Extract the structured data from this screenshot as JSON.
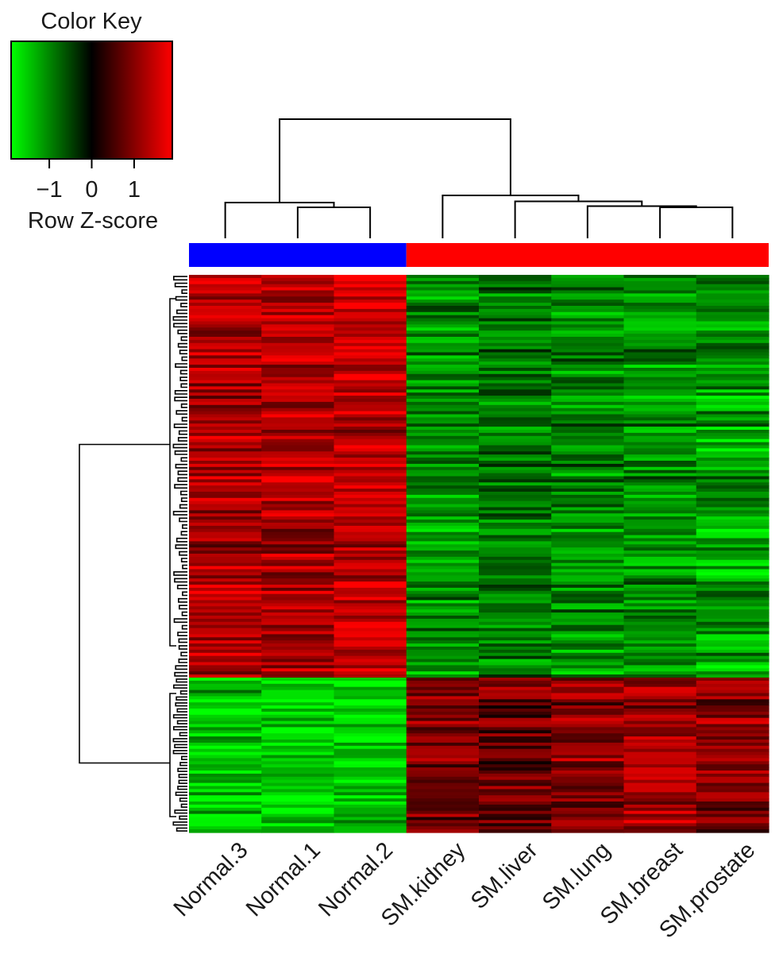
{
  "chart_data": {
    "type": "heatmap",
    "title": "",
    "color_key": {
      "title": "Color Key",
      "xlabel": "Row Z-score",
      "ticks": [
        "−1",
        "0",
        "1"
      ],
      "tick_values": [
        -1,
        0,
        1
      ],
      "range": [
        -1.9,
        1.9
      ],
      "colors": {
        "low": "#00ff00",
        "mid": "#000000",
        "high": "#ff0000"
      }
    },
    "columns": [
      "Normal.3",
      "Normal.1",
      "Normal.2",
      "SM.kidney",
      "SM.liver",
      "SM.lung",
      "SM.breast",
      "SM.prostate"
    ],
    "column_groups": [
      {
        "members": [
          "Normal.3",
          "Normal.1",
          "Normal.2"
        ],
        "color": "#0000ff"
      },
      {
        "members": [
          "SM.kidney",
          "SM.liver",
          "SM.lung",
          "SM.breast",
          "SM.prostate"
        ],
        "color": "#ff0000"
      }
    ],
    "row_clusters": [
      {
        "rows": 130,
        "pattern": [
          1.3,
          1.3,
          1.4,
          -1.1,
          -0.9,
          -1.0,
          -1.1,
          -1.2
        ]
      },
      {
        "rows": 50,
        "pattern": [
          -1.4,
          -1.5,
          -1.5,
          0.9,
          0.8,
          1.0,
          1.2,
          1.0
        ]
      }
    ],
    "column_dendrogram": {
      "merges": [
        {
          "left": "Normal.1",
          "right": "Normal.2",
          "height": 0.26
        },
        {
          "left": "Normal.3",
          "right": "Normal.1+Normal.2",
          "height": 0.3
        },
        {
          "left": "SM.breast",
          "right": "SM.prostate",
          "height": 0.26
        },
        {
          "left": "SM.lung",
          "right": "SM.breast+SM.prostate",
          "height": 0.27
        },
        {
          "left": "SM.liver",
          "right": "SM.lung+SM.breast+SM.prostate",
          "height": 0.31
        },
        {
          "left": "SM.kidney",
          "right": "SM.liver+SM.lung+SM.breast+SM.prostate",
          "height": 0.36
        },
        {
          "left": "Normal",
          "right": "SM",
          "height": 1.0
        }
      ]
    },
    "grid": false,
    "legend": "top-left"
  }
}
